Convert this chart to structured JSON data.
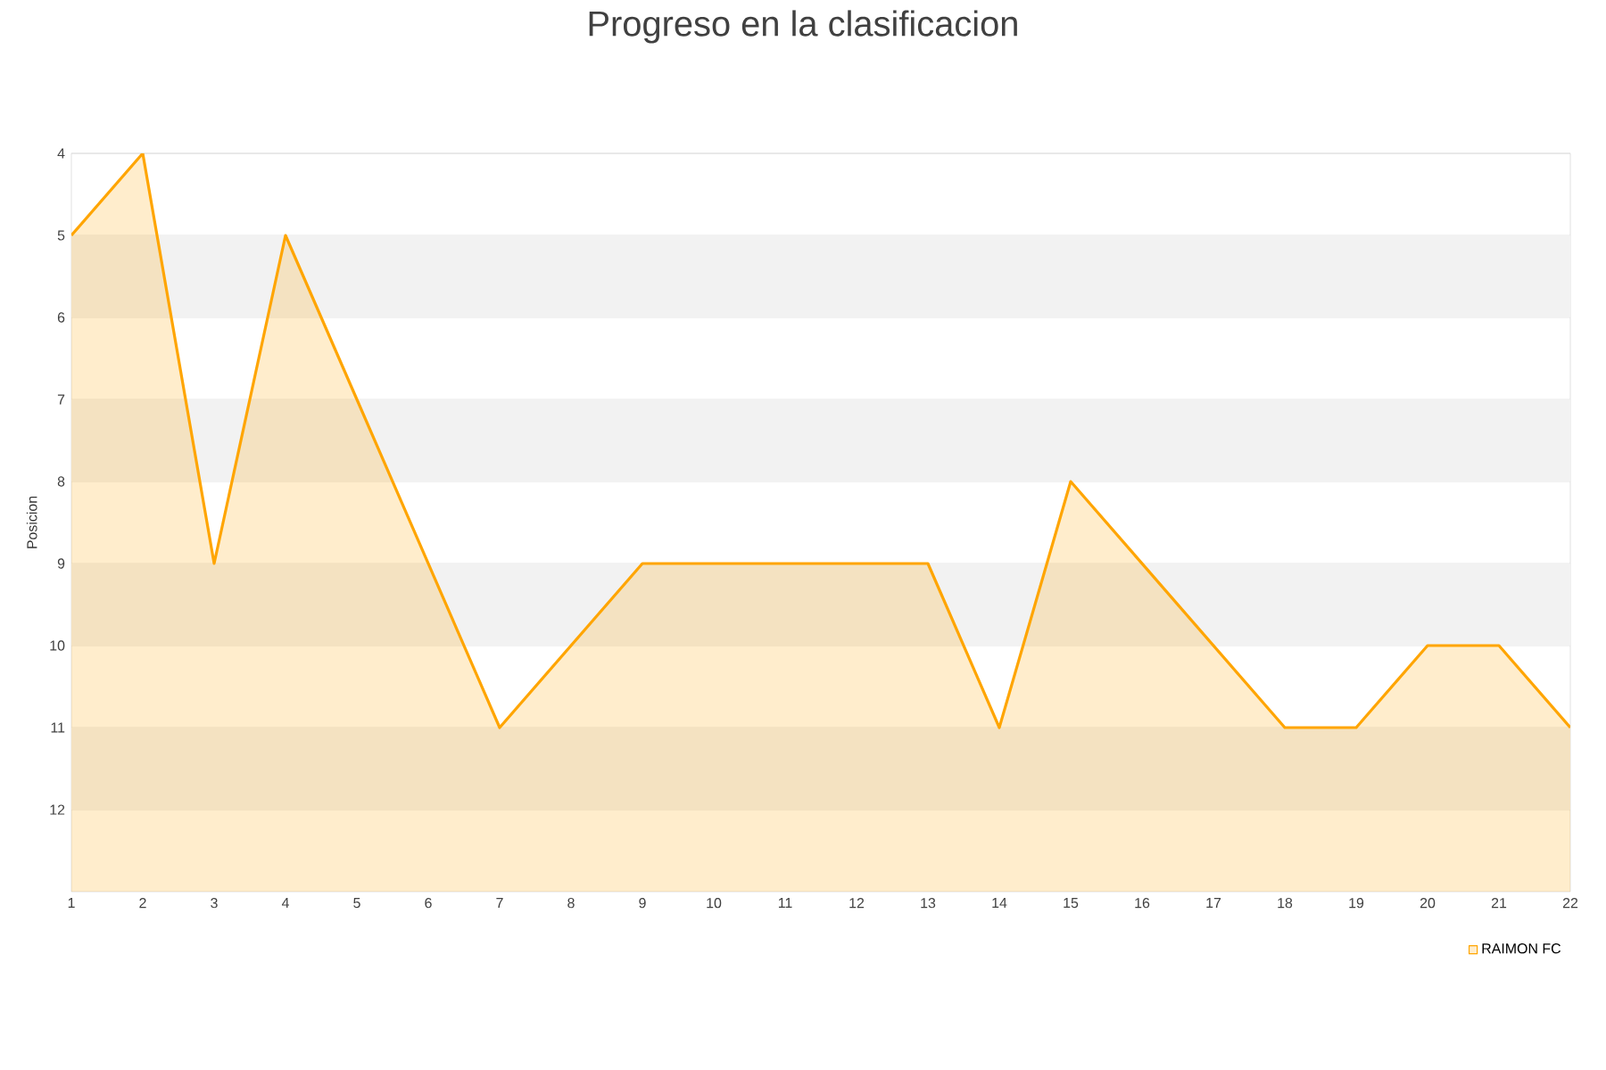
{
  "chart_data": {
    "type": "area",
    "title": "Progreso en la clasificacion",
    "ylabel": "Posicion",
    "x": [
      1,
      2,
      3,
      4,
      5,
      6,
      7,
      8,
      9,
      10,
      11,
      12,
      13,
      14,
      15,
      16,
      17,
      18,
      19,
      20,
      21,
      22
    ],
    "series": [
      {
        "name": "RAIMON FC",
        "color": "#ffa500",
        "values": [
          5,
          4,
          9,
          5,
          7,
          9,
          11,
          10,
          9,
          9,
          9,
          9,
          9,
          11,
          8,
          9,
          10,
          11,
          11,
          10,
          10,
          11
        ]
      }
    ],
    "xlim": [
      1,
      22
    ],
    "xticks": [
      1,
      2,
      3,
      4,
      5,
      6,
      7,
      8,
      9,
      10,
      11,
      12,
      13,
      14,
      15,
      16,
      17,
      18,
      19,
      20,
      21,
      22
    ],
    "ylim": [
      13,
      4
    ],
    "yticks": [
      4,
      5,
      6,
      7,
      8,
      9,
      10,
      11,
      12
    ],
    "bands": [
      {
        "axis": "y",
        "from": 5,
        "to": 6,
        "color": "#f2f2f2"
      },
      {
        "axis": "y",
        "from": 7,
        "to": 8,
        "color": "#f2f2f2"
      },
      {
        "axis": "y",
        "from": 9,
        "to": 10,
        "color": "#f2f2f2"
      },
      {
        "axis": "y",
        "from": 11,
        "to": 12,
        "color": "#f2f2f2"
      }
    ],
    "grid": "y",
    "legend": "bottom right",
    "marker": "none",
    "line_style": "solid"
  }
}
